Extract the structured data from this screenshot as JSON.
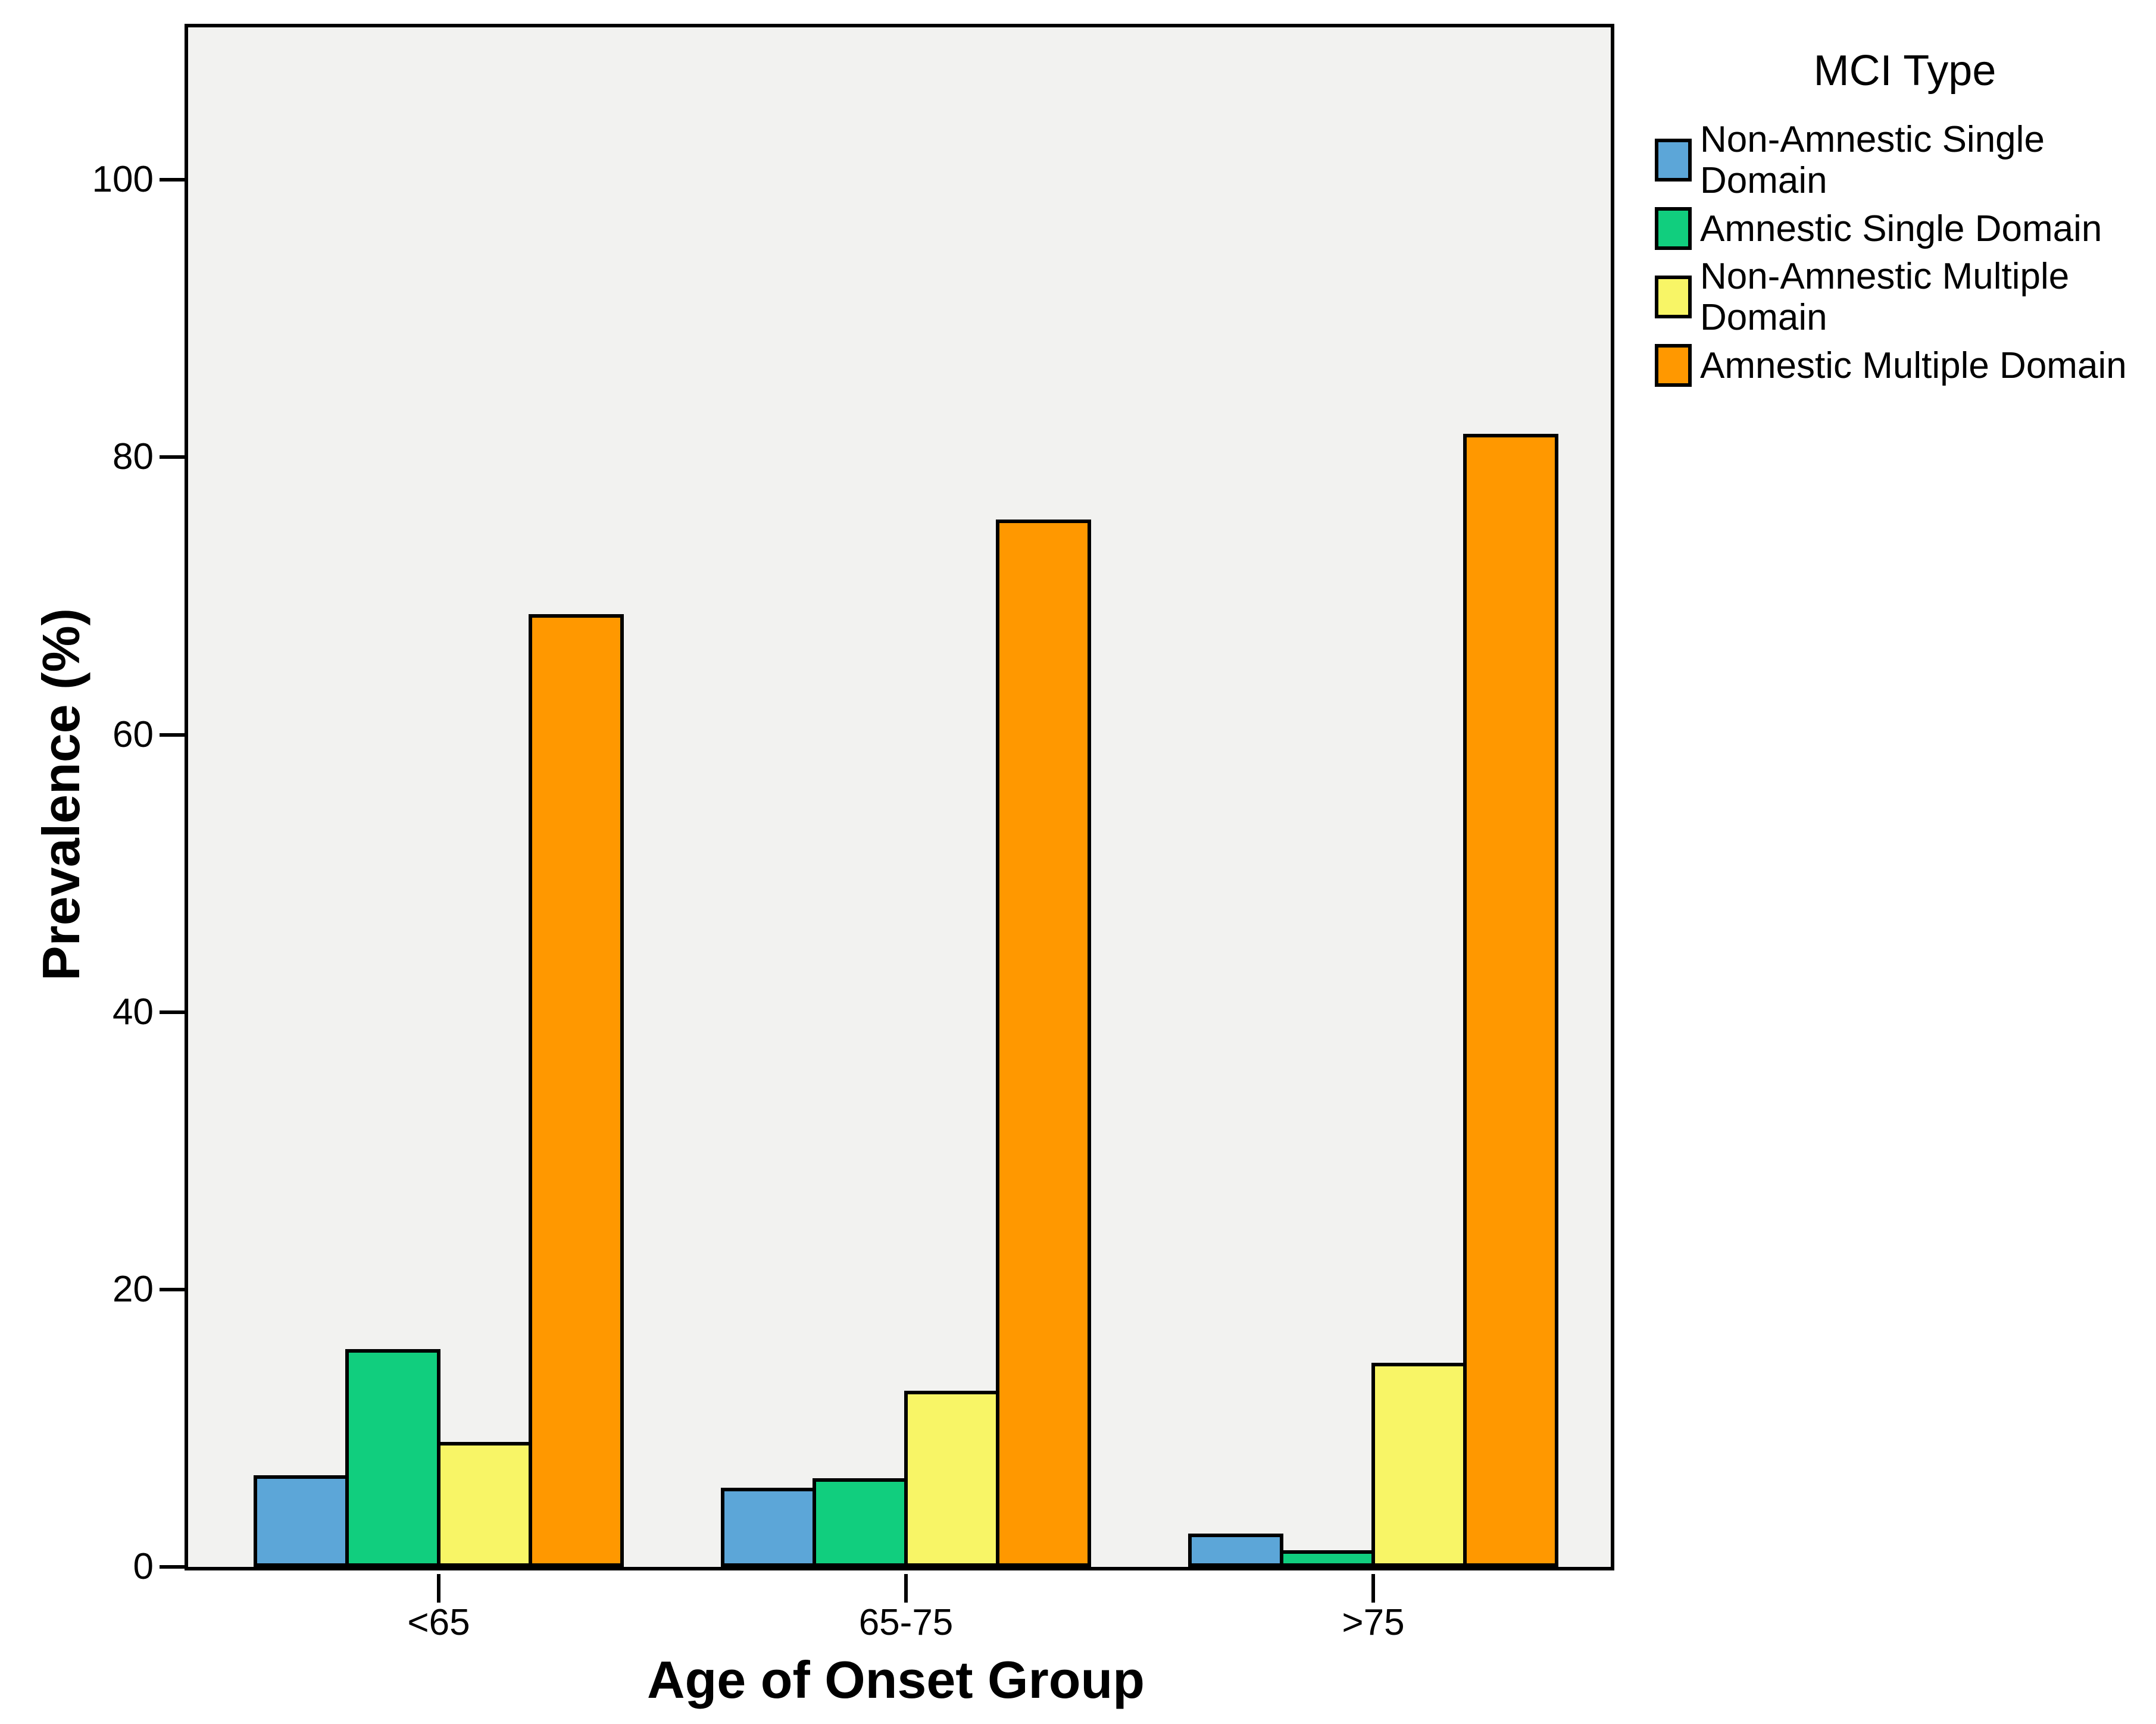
{
  "chart_data": {
    "type": "bar",
    "legend_title": "MCI Type",
    "xlabel": "Age of Onset Group",
    "ylabel": "Prevalence (%)",
    "categories": [
      "<65",
      "65-75",
      ">75"
    ],
    "series": [
      {
        "name": "Non-Amnestic Single Domain",
        "legend_label": "Non-Amnestic Single\nDomain",
        "color": "#5CA6D8",
        "values": [
          6.6,
          5.7,
          2.4
        ]
      },
      {
        "name": "Amnestic Single Domain",
        "legend_label": "Amnestic Single Domain",
        "color": "#11CE7E",
        "values": [
          15.7,
          6.4,
          1.2
        ]
      },
      {
        "name": "Non-Amnestic Multiple Domain",
        "legend_label": "Non-Amnestic Multiple\nDomain",
        "color": "#F8F566",
        "values": [
          9.0,
          12.7,
          14.7
        ]
      },
      {
        "name": "Amnestic Multiple Domain",
        "legend_label": "Amnestic Multiple Domain",
        "color": "#FF9800",
        "values": [
          68.7,
          75.5,
          81.7
        ]
      }
    ],
    "yticks": [
      0,
      20,
      40,
      60,
      80,
      100
    ],
    "ylim": [
      0,
      111
    ],
    "grid": false,
    "legend_position": "top-right",
    "plot_background": "#F2F2F0",
    "bar_border_color": "#000000"
  }
}
